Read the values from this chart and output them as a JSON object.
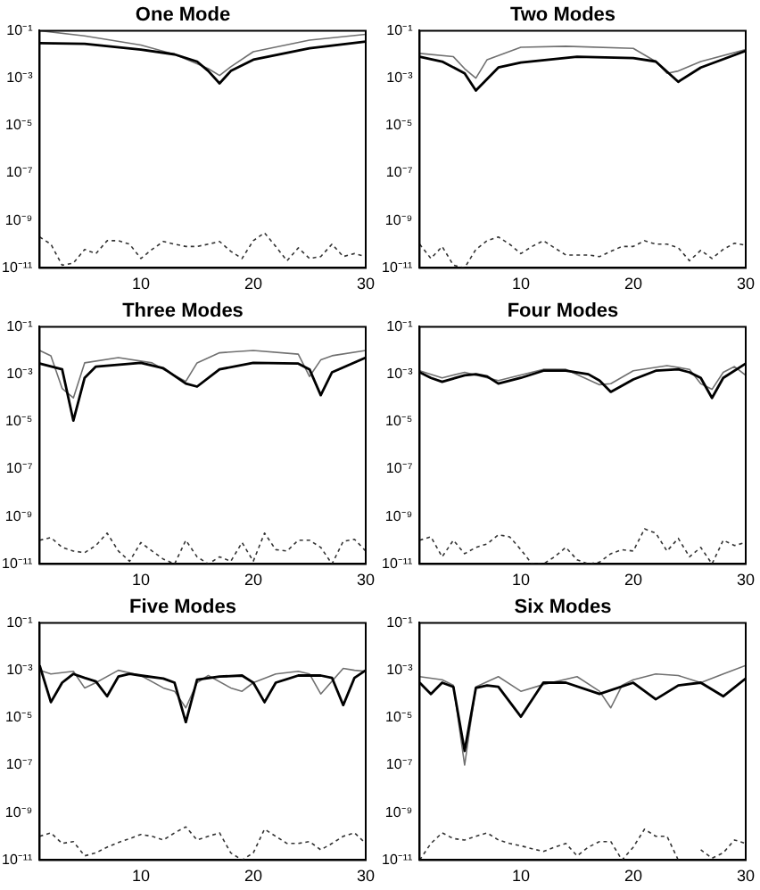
{
  "chart_data": [
    {
      "type": "line",
      "title": "One Mode",
      "xlim": [
        1,
        30
      ],
      "xticks": [
        10,
        20,
        30
      ],
      "ylim": [
        1e-11,
        0.1
      ],
      "log": "y",
      "grid": false,
      "legend": false,
      "marker": "none",
      "yticks": [
        {
          "value": 0.1,
          "label": "10⁻¹"
        },
        {
          "value": 0.001,
          "label": "10⁻³"
        },
        {
          "value": 1e-05,
          "label": "10⁻⁵"
        },
        {
          "value": 1e-07,
          "label": "10⁻⁷"
        },
        {
          "value": 1e-09,
          "label": "10⁻⁹"
        },
        {
          "value": 1e-11,
          "label": "10⁻¹¹"
        }
      ],
      "series": [
        {
          "color": "#000000",
          "line_style": "solid",
          "x": [
            1,
            5,
            10,
            13,
            15,
            16,
            17,
            18,
            20,
            25,
            30
          ],
          "values": [
            0.03,
            0.028,
            0.016,
            0.01,
            0.005,
            0.002,
            0.0006,
            0.002,
            0.006,
            0.018,
            0.035
          ]
        },
        {
          "color": "#707070",
          "line_style": "solid",
          "x": [
            1,
            5,
            10,
            13,
            15,
            16,
            17,
            18,
            20,
            25,
            30
          ],
          "values": [
            0.1,
            0.06,
            0.025,
            0.01,
            0.004,
            0.0025,
            0.0013,
            0.003,
            0.013,
            0.04,
            0.07
          ]
        },
        {
          "color": "#333333",
          "line_style": "dotted",
          "x": [
            1,
            2,
            3,
            4,
            5,
            6,
            7,
            8,
            9,
            10,
            11,
            12,
            13,
            14,
            15,
            16,
            17,
            18,
            19,
            20,
            21,
            22,
            23,
            24,
            25,
            26,
            27,
            28,
            29,
            30
          ],
          "values": [
            2e-10,
            1e-10,
            1.3e-11,
            1.6e-11,
            6e-11,
            4e-11,
            1.4e-10,
            1.4e-10,
            1e-10,
            2.5e-11,
            6e-11,
            1.3e-10,
            1e-10,
            8e-11,
            8e-11,
            1e-10,
            1.3e-10,
            5e-11,
            2.5e-11,
            1.4e-10,
            3e-10,
            8e-11,
            2e-11,
            7e-11,
            2.5e-11,
            3e-11,
            1e-10,
            3e-11,
            4e-11,
            3e-11
          ]
        }
      ]
    },
    {
      "type": "line",
      "title": "Two Modes",
      "xlim": [
        1,
        30
      ],
      "xticks": [
        10,
        20,
        30
      ],
      "ylim": [
        1e-11,
        0.1
      ],
      "log": "y",
      "grid": false,
      "legend": false,
      "marker": "none",
      "yticks": [
        {
          "value": 0.1,
          "label": "10⁻¹"
        },
        {
          "value": 0.001,
          "label": "10⁻³"
        },
        {
          "value": 1e-05,
          "label": "10⁻⁵"
        },
        {
          "value": 1e-07,
          "label": "10⁻⁷"
        },
        {
          "value": 1e-09,
          "label": "10⁻⁹"
        },
        {
          "value": 1e-11,
          "label": "10⁻¹¹"
        }
      ],
      "series": [
        {
          "color": "#000000",
          "line_style": "solid",
          "x": [
            1,
            3,
            5,
            6,
            8,
            10,
            15,
            20,
            22,
            24,
            26,
            30
          ],
          "values": [
            0.008,
            0.005,
            0.0016,
            0.0003,
            0.0028,
            0.0045,
            0.008,
            0.007,
            0.005,
            0.0007,
            0.0028,
            0.014
          ]
        },
        {
          "color": "#707070",
          "line_style": "solid",
          "x": [
            1,
            4,
            5,
            6,
            7,
            10,
            14,
            20,
            22,
            23,
            24,
            26,
            30
          ],
          "values": [
            0.011,
            0.008,
            0.0025,
            0.001,
            0.006,
            0.02,
            0.022,
            0.018,
            0.005,
            0.0016,
            0.002,
            0.005,
            0.016
          ]
        },
        {
          "color": "#333333",
          "line_style": "dotted",
          "x": [
            1,
            2,
            3,
            4,
            5,
            6,
            7,
            8,
            9,
            10,
            11,
            12,
            13,
            14,
            15,
            16,
            17,
            18,
            19,
            20,
            21,
            22,
            23,
            24,
            25,
            26,
            27,
            28,
            29,
            30
          ],
          "values": [
            1e-10,
            2.5e-11,
            8e-11,
            1.3e-11,
            1e-11,
            6e-11,
            1.4e-10,
            2e-10,
            1e-10,
            4e-11,
            8e-11,
            1.4e-10,
            7e-11,
            3.5e-11,
            3.5e-11,
            3.5e-11,
            3e-11,
            5e-11,
            8e-11,
            8e-11,
            1.4e-10,
            1e-10,
            1e-10,
            7e-11,
            2e-11,
            5.5e-11,
            2.5e-11,
            6e-11,
            1.1e-10,
            9e-11
          ]
        }
      ]
    },
    {
      "type": "line",
      "title": "Three Modes",
      "xlim": [
        1,
        30
      ],
      "xticks": [
        10,
        20,
        30
      ],
      "ylim": [
        1e-11,
        0.1
      ],
      "log": "y",
      "grid": false,
      "legend": false,
      "marker": "none",
      "yticks": [
        {
          "value": 0.1,
          "label": "10⁻¹"
        },
        {
          "value": 0.001,
          "label": "10⁻³"
        },
        {
          "value": 1e-05,
          "label": "10⁻⁵"
        },
        {
          "value": 1e-07,
          "label": "10⁻⁷"
        },
        {
          "value": 1e-09,
          "label": "10⁻⁹"
        },
        {
          "value": 1e-11,
          "label": "10⁻¹¹"
        }
      ],
      "series": [
        {
          "color": "#000000",
          "line_style": "solid",
          "x": [
            1,
            3,
            4,
            5,
            6,
            10,
            12,
            14,
            15,
            17,
            20,
            24,
            25,
            26,
            27,
            30
          ],
          "values": [
            0.0028,
            0.0016,
            1.1e-05,
            0.0007,
            0.0021,
            0.003,
            0.0018,
            0.0004,
            0.0003,
            0.0016,
            0.003,
            0.0028,
            0.0016,
            0.00013,
            0.0012,
            0.005
          ]
        },
        {
          "color": "#707070",
          "line_style": "solid",
          "x": [
            1,
            2,
            3,
            4,
            5,
            8,
            11,
            12,
            14,
            15,
            17,
            20,
            24,
            25,
            26,
            27,
            30
          ],
          "values": [
            0.01,
            0.006,
            0.00025,
            0.0001,
            0.003,
            0.005,
            0.003,
            0.0016,
            0.0005,
            0.003,
            0.008,
            0.01,
            0.007,
            0.0008,
            0.004,
            0.006,
            0.01
          ]
        },
        {
          "color": "#333333",
          "line_style": "dotted",
          "x": [
            1,
            2,
            3,
            4,
            5,
            6,
            7,
            8,
            9,
            10,
            11,
            12,
            13,
            14,
            15,
            16,
            17,
            18,
            19,
            20,
            21,
            22,
            23,
            24,
            25,
            26,
            27,
            28,
            29,
            30
          ],
          "values": [
            1e-10,
            1.3e-10,
            5e-11,
            3.5e-11,
            3e-11,
            6e-11,
            2e-10,
            3.5e-11,
            1.3e-11,
            8e-11,
            3.5e-11,
            1.6e-11,
            1e-11,
            1e-10,
            2e-11,
            1e-11,
            2e-11,
            1.3e-11,
            8e-11,
            1.3e-11,
            2e-10,
            4e-11,
            3.5e-11,
            1e-10,
            1e-10,
            5e-11,
            1e-11,
            9e-11,
            1.1e-10,
            3.5e-11
          ]
        }
      ]
    },
    {
      "type": "line",
      "title": "Four Modes",
      "xlim": [
        1,
        30
      ],
      "xticks": [
        10,
        20,
        30
      ],
      "ylim": [
        1e-11,
        0.1
      ],
      "log": "y",
      "grid": false,
      "legend": false,
      "marker": "none",
      "yticks": [
        {
          "value": 0.1,
          "label": "10⁻¹"
        },
        {
          "value": 0.001,
          "label": "10⁻³"
        },
        {
          "value": 1e-05,
          "label": "10⁻⁵"
        },
        {
          "value": 1e-07,
          "label": "10⁻⁷"
        },
        {
          "value": 1e-09,
          "label": "10⁻⁹"
        },
        {
          "value": 1e-11,
          "label": "10⁻¹¹"
        }
      ],
      "series": [
        {
          "color": "#000000",
          "line_style": "solid",
          "x": [
            1,
            2,
            3,
            5,
            6,
            7,
            8,
            10,
            12,
            14,
            16,
            17,
            18,
            20,
            22,
            24,
            25,
            26,
            27,
            28,
            30
          ],
          "values": [
            0.0012,
            0.0007,
            0.00048,
            0.0009,
            0.001,
            0.0008,
            0.0004,
            0.0007,
            0.0014,
            0.0014,
            0.001,
            0.00054,
            0.00018,
            0.0006,
            0.0014,
            0.0016,
            0.0012,
            0.0007,
            0.0001,
            0.0007,
            0.0028
          ]
        },
        {
          "color": "#707070",
          "line_style": "solid",
          "x": [
            1,
            3,
            5,
            8,
            12,
            14,
            17,
            18,
            20,
            23,
            25,
            26,
            27,
            28,
            29,
            30
          ],
          "values": [
            0.0014,
            0.0007,
            0.0012,
            0.00054,
            0.0016,
            0.0016,
            0.00036,
            0.0004,
            0.0014,
            0.0023,
            0.0016,
            0.0004,
            0.00023,
            0.0012,
            0.0021,
            0.0009
          ]
        },
        {
          "color": "#333333",
          "line_style": "dotted",
          "x": [
            1,
            2,
            3,
            4,
            5,
            6,
            7,
            8,
            9,
            10,
            11,
            12,
            13,
            14,
            15,
            16,
            17,
            18,
            19,
            20,
            21,
            22,
            23,
            24,
            25,
            26,
            27,
            28,
            29,
            30
          ],
          "values": [
            1e-10,
            1.4e-10,
            2e-11,
            1e-10,
            2.7e-11,
            5e-11,
            7e-11,
            1.7e-10,
            1.4e-10,
            4e-11,
            1e-11,
            1e-11,
            2e-11,
            5e-11,
            1.5e-11,
            1e-11,
            1.2e-11,
            2.7e-11,
            4e-11,
            3.5e-11,
            3e-10,
            2e-10,
            3.5e-11,
            1.2e-10,
            2e-11,
            5e-11,
            1e-11,
            1e-10,
            6e-11,
            8e-11
          ]
        }
      ]
    },
    {
      "type": "line",
      "title": "Five Modes",
      "xlim": [
        1,
        30
      ],
      "xticks": [
        10,
        20,
        30
      ],
      "ylim": [
        1e-11,
        0.1
      ],
      "log": "y",
      "grid": false,
      "legend": false,
      "marker": "none",
      "yticks": [
        {
          "value": 0.1,
          "label": "10⁻¹"
        },
        {
          "value": 0.001,
          "label": "10⁻³"
        },
        {
          "value": 1e-05,
          "label": "10⁻⁵"
        },
        {
          "value": 1e-07,
          "label": "10⁻⁷"
        },
        {
          "value": 1e-09,
          "label": "10⁻⁹"
        },
        {
          "value": 1e-11,
          "label": "10⁻¹¹"
        }
      ],
      "series": [
        {
          "color": "#000000",
          "line_style": "solid",
          "x": [
            1,
            2,
            3,
            4,
            5,
            6,
            7,
            8,
            9,
            10,
            12,
            13,
            14,
            15,
            17,
            19,
            20,
            21,
            22,
            24,
            26,
            27,
            28,
            29,
            30
          ],
          "values": [
            0.0016,
            4.5e-05,
            0.0003,
            0.0007,
            0.00048,
            0.00034,
            8e-05,
            0.00054,
            0.0007,
            0.0006,
            0.00045,
            0.0003,
            6.5e-06,
            0.0004,
            0.00054,
            0.0006,
            0.0003,
            4.5e-05,
            0.0003,
            0.0006,
            0.0006,
            0.00048,
            3.4e-05,
            0.00048,
            0.001
          ]
        },
        {
          "color": "#707070",
          "line_style": "solid",
          "x": [
            1,
            2,
            4,
            5,
            6,
            8,
            10,
            12,
            13,
            14,
            15,
            16,
            18,
            19,
            20,
            22,
            24,
            25,
            26,
            28,
            29,
            30
          ],
          "values": [
            0.001,
            0.0007,
            0.0009,
            0.00018,
            0.0003,
            0.001,
            0.0006,
            0.00018,
            0.00013,
            2.6e-05,
            0.0003,
            0.0006,
            0.00018,
            0.00013,
            0.0003,
            0.0007,
            0.0009,
            0.0007,
            0.0001,
            0.0012,
            0.001,
            0.0009
          ]
        },
        {
          "color": "#333333",
          "line_style": "dotted",
          "x": [
            1,
            2,
            3,
            4,
            5,
            6,
            7,
            8,
            9,
            10,
            11,
            12,
            13,
            14,
            15,
            16,
            17,
            18,
            19,
            20,
            21,
            22,
            23,
            24,
            25,
            26,
            27,
            28,
            29,
            30
          ],
          "values": [
            1e-10,
            1.4e-10,
            5e-11,
            6e-11,
            1.5e-11,
            2e-11,
            3.5e-11,
            5.5e-11,
            8e-11,
            1.2e-10,
            1e-10,
            7e-11,
            1.4e-10,
            2.5e-10,
            7e-11,
            1e-10,
            1.4e-10,
            2e-11,
            1e-11,
            2e-11,
            2e-10,
            1e-10,
            5e-11,
            5e-11,
            6e-11,
            2.7e-11,
            5e-11,
            1e-10,
            1.4e-10,
            5e-11
          ]
        }
      ]
    },
    {
      "type": "line",
      "title": "Six Modes",
      "xlim": [
        1,
        30
      ],
      "xticks": [
        10,
        20,
        30
      ],
      "ylim": [
        1e-11,
        0.1
      ],
      "log": "y",
      "grid": false,
      "legend": false,
      "marker": "none",
      "yticks": [
        {
          "value": 0.1,
          "label": "10⁻¹"
        },
        {
          "value": 0.001,
          "label": "10⁻³"
        },
        {
          "value": 1e-05,
          "label": "10⁻⁵"
        },
        {
          "value": 1e-07,
          "label": "10⁻⁷"
        },
        {
          "value": 1e-09,
          "label": "10⁻⁹"
        },
        {
          "value": 1e-11,
          "label": "10⁻¹¹"
        }
      ],
      "series": [
        {
          "color": "#000000",
          "line_style": "solid",
          "x": [
            1,
            2,
            3,
            4,
            5,
            6,
            7,
            8,
            10,
            12,
            14,
            17,
            20,
            22,
            24,
            26,
            28,
            30
          ],
          "values": [
            0.0003,
            0.0001,
            0.0003,
            0.0002,
            4e-07,
            0.00018,
            0.00023,
            0.0002,
            1.1e-05,
            0.0003,
            0.0003,
            0.0001,
            0.0003,
            6e-05,
            0.00023,
            0.0003,
            8e-05,
            0.00045
          ]
        },
        {
          "color": "#707070",
          "line_style": "solid",
          "x": [
            1,
            3,
            4,
            5,
            6,
            8,
            10,
            12,
            15,
            17,
            18,
            19,
            20,
            22,
            24,
            26,
            28,
            30
          ],
          "values": [
            0.00054,
            0.0004,
            0.00023,
            1e-07,
            0.0002,
            0.00054,
            0.00013,
            0.00025,
            0.00054,
            0.00013,
            2.6e-05,
            0.00023,
            0.0004,
            0.0007,
            0.0006,
            0.0003,
            0.0007,
            0.0016
          ]
        },
        {
          "color": "#333333",
          "line_style": "dotted",
          "x": [
            1,
            2,
            3,
            4,
            5,
            6,
            7,
            8,
            9,
            10,
            11,
            12,
            13,
            14,
            15,
            16,
            17,
            18,
            19,
            20,
            21,
            22,
            23,
            24,
            25,
            26,
            27,
            28,
            29,
            30
          ],
          "values": [
            1e-11,
            5e-11,
            1.4e-10,
            8e-11,
            7e-11,
            1e-10,
            1.4e-10,
            7e-11,
            5e-11,
            4e-11,
            3e-11,
            2.3e-11,
            3.5e-11,
            5e-11,
            1.5e-11,
            3.5e-11,
            6e-11,
            6e-11,
            1e-11,
            3.5e-11,
            2e-10,
            1e-10,
            1e-10,
            1e-11,
            null,
            2.7e-11,
            1.2e-11,
            2e-11,
            7e-11,
            5e-11
          ]
        }
      ]
    }
  ]
}
